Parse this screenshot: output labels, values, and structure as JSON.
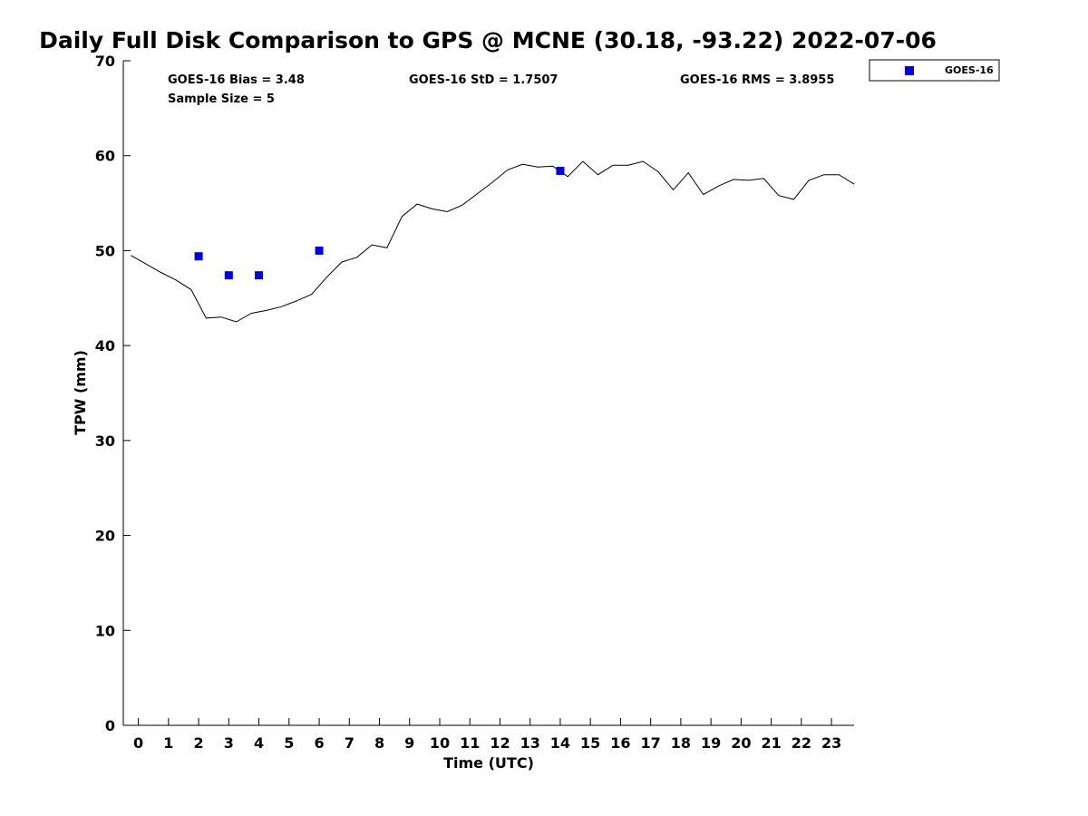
{
  "chart_data": {
    "type": "line+scatter",
    "title": "Daily Full Disk Comparison to GPS @ MCNE (30.18, -93.22) 2022-07-06",
    "xlabel": "Time (UTC)",
    "ylabel": "TPW (mm)",
    "xlim": [
      -0.5,
      23.75
    ],
    "ylim": [
      0,
      70
    ],
    "x_ticks": [
      0,
      1,
      2,
      3,
      4,
      5,
      6,
      7,
      8,
      9,
      10,
      11,
      12,
      13,
      14,
      15,
      16,
      17,
      18,
      19,
      20,
      21,
      22,
      23
    ],
    "y_ticks": [
      0,
      10,
      20,
      30,
      40,
      50,
      60,
      70
    ],
    "grid": false,
    "legend_position": "outside-top-right",
    "stats": {
      "bias": "GOES-16 Bias = 3.48",
      "std": "GOES-16 StD = 1.7507",
      "rms": "GOES-16 RMS = 3.8955",
      "sample_size": "Sample Size = 5"
    },
    "series": [
      {
        "name": "",
        "kind": "line",
        "color": "#000000",
        "x": [
          -0.25,
          0.25,
          0.75,
          1.25,
          1.75,
          2.25,
          2.75,
          3.25,
          3.75,
          4.25,
          4.75,
          5.25,
          5.75,
          6.25,
          6.75,
          7.25,
          7.75,
          8.25,
          8.75,
          9.25,
          9.75,
          10.25,
          10.75,
          11.25,
          11.75,
          12.25,
          12.75,
          13.25,
          13.75,
          14.25,
          14.75,
          15.25,
          15.75,
          16.25,
          16.75,
          17.25,
          17.75,
          18.25,
          18.75,
          19.25,
          19.75,
          20.25,
          20.75,
          21.25,
          21.75,
          22.25,
          22.75,
          23.25,
          23.75
        ],
        "y": [
          49.5,
          48.6,
          47.7,
          46.9,
          45.9,
          42.9,
          43.0,
          42.5,
          43.4,
          43.7,
          44.1,
          44.7,
          45.4,
          47.2,
          48.8,
          49.3,
          50.6,
          50.3,
          53.6,
          54.9,
          54.4,
          54.1,
          54.8,
          56.0,
          57.2,
          58.5,
          59.1,
          58.8,
          58.9,
          57.8,
          59.4,
          58.0,
          59.0,
          59.0,
          59.4,
          58.3,
          56.4,
          58.2,
          55.9,
          56.8,
          57.5,
          57.4,
          57.6,
          55.8,
          55.4,
          57.4,
          58.0,
          58.0,
          57.0
        ]
      },
      {
        "name": "GOES-16",
        "kind": "scatter",
        "marker": "square",
        "color": "#0000e0",
        "x": [
          2,
          3,
          4,
          6,
          14
        ],
        "y": [
          49.4,
          47.4,
          47.4,
          50.0,
          58.4
        ]
      }
    ]
  }
}
